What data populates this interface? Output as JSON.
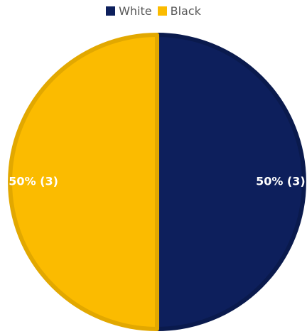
{
  "chart_data": {
    "type": "pie",
    "categories": [
      "White",
      "Black"
    ],
    "values": [
      3,
      3
    ],
    "labels": [
      "50% (3)",
      "50% (3)"
    ],
    "colors": [
      "#0d1f5c",
      "#fbbb00"
    ],
    "border_colors": [
      "#0a1a4d",
      "#e2a800"
    ],
    "legend": {
      "placement": "top",
      "entries": [
        "White",
        "Black"
      ]
    }
  }
}
